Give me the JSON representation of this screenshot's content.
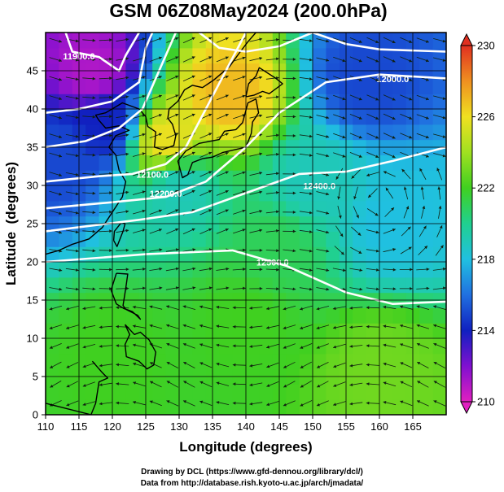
{
  "chart_data": {
    "type": "heatmap",
    "title": "GSM 06Z08May2024 (200.0hPa)",
    "xlabel": "Longitude (degrees)",
    "ylabel": "Latitude  (degrees)",
    "xlim": [
      110,
      170
    ],
    "ylim": [
      0,
      50
    ],
    "x_ticks": [
      110,
      115,
      120,
      125,
      130,
      135,
      140,
      145,
      150,
      155,
      160,
      165
    ],
    "y_ticks": [
      0,
      5,
      10,
      15,
      20,
      25,
      30,
      35,
      40,
      45
    ],
    "colorbar": {
      "range": [
        210,
        230
      ],
      "ticks": [
        210,
        214,
        218,
        222,
        226,
        230
      ],
      "stops": [
        {
          "value": 210,
          "color": "#e020c0"
        },
        {
          "value": 212,
          "color": "#8010d0"
        },
        {
          "value": 214,
          "color": "#1020c0"
        },
        {
          "value": 216,
          "color": "#2070e0"
        },
        {
          "value": 218,
          "color": "#20c0e0"
        },
        {
          "value": 220,
          "color": "#20d090"
        },
        {
          "value": 222,
          "color": "#40d020"
        },
        {
          "value": 224,
          "color": "#a0e020"
        },
        {
          "value": 226,
          "color": "#f0e020"
        },
        {
          "value": 228,
          "color": "#f09020"
        },
        {
          "value": 230,
          "color": "#e03020"
        }
      ]
    },
    "temperature_regions": [
      {
        "lon": 117,
        "lat": 45,
        "value": 211
      },
      {
        "lon": 119,
        "lat": 38,
        "value": 214
      },
      {
        "lon": 112,
        "lat": 34,
        "value": 215
      },
      {
        "lon": 137,
        "lat": 42,
        "value": 227
      },
      {
        "lon": 128,
        "lat": 36,
        "value": 226
      },
      {
        "lon": 130,
        "lat": 30,
        "value": 219
      },
      {
        "lon": 158,
        "lat": 44,
        "value": 215
      },
      {
        "lon": 162,
        "lat": 25,
        "value": 218
      },
      {
        "lon": 150,
        "lat": 30,
        "value": 219
      },
      {
        "lon": 145,
        "lat": 22,
        "value": 221
      },
      {
        "lon": 140,
        "lat": 12,
        "value": 222
      },
      {
        "lon": 120,
        "lat": 8,
        "value": 222
      },
      {
        "lon": 160,
        "lat": 6,
        "value": 223
      }
    ],
    "contours": [
      {
        "label": "11900.0",
        "lon": 115,
        "lat": 46.5
      },
      {
        "label": "12000.0",
        "lon": 162,
        "lat": 43.5
      },
      {
        "label": "12100.0",
        "lon": 126,
        "lat": 31
      },
      {
        "label": "12200.0",
        "lon": 128,
        "lat": 28.5
      },
      {
        "label": "12400.0",
        "lon": 151,
        "lat": 29.5
      },
      {
        "label": "12500.0",
        "lon": 144,
        "lat": 19.5
      }
    ],
    "credits": [
      "Drawing by DCL (https://www.gfd-dennou.org/library/dcl/)",
      "Data from http://database.rish.kyoto-u.ac.jp/arch/jmadata/"
    ]
  }
}
